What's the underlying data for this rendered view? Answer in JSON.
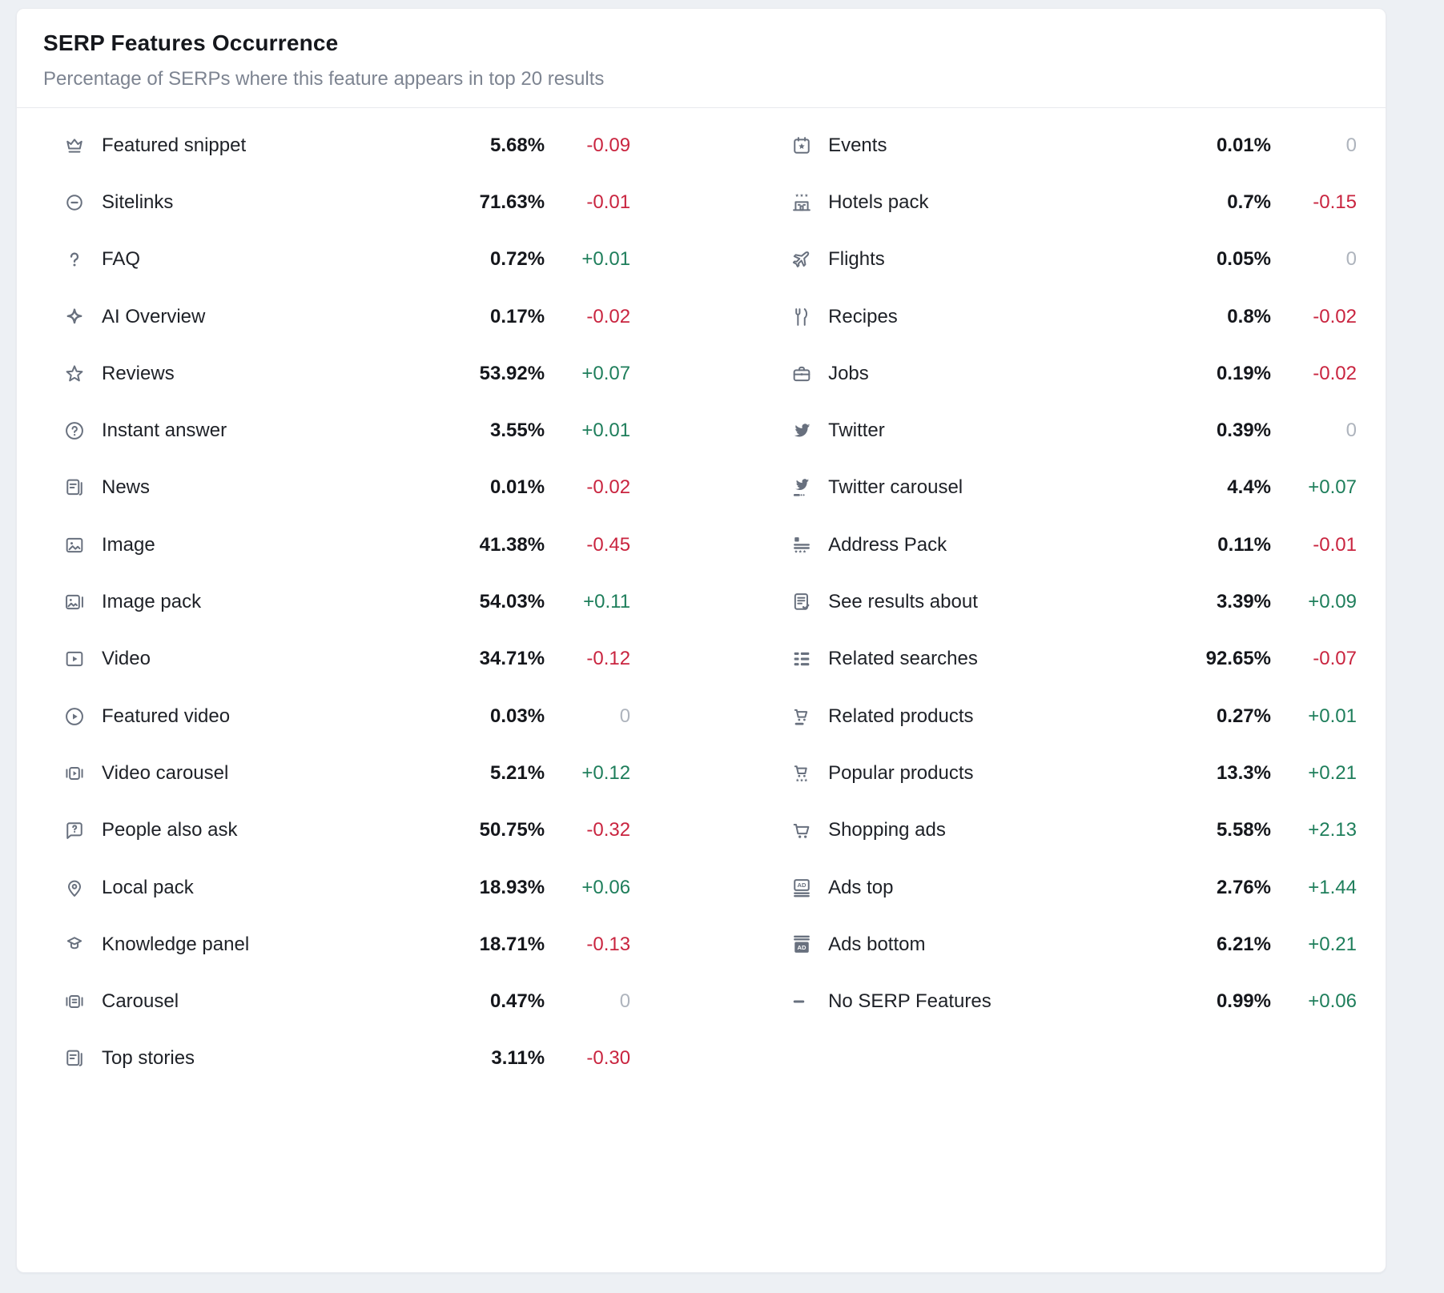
{
  "header": {
    "title": "SERP Features Occurrence",
    "subtitle": "Percentage of SERPs where this feature appears in top 20 results"
  },
  "colors": {
    "positive": "#1e7e5b",
    "negative": "#c9243f",
    "neutral": "#aeb4bd",
    "icon": "#68707e"
  },
  "columns": {
    "left": [
      {
        "icon": "featured-snippet-crown-icon",
        "label": "Featured snippet",
        "value": "5.68%",
        "change": "-0.09"
      },
      {
        "icon": "sitelinks-icon",
        "label": "Sitelinks",
        "value": "71.63%",
        "change": "-0.01"
      },
      {
        "icon": "faq-question-icon",
        "label": "FAQ",
        "value": "0.72%",
        "change": "+0.01"
      },
      {
        "icon": "ai-overview-sparkle-icon",
        "label": "AI Overview",
        "value": "0.17%",
        "change": "-0.02"
      },
      {
        "icon": "reviews-star-icon",
        "label": "Reviews",
        "value": "53.92%",
        "change": "+0.07"
      },
      {
        "icon": "instant-answer-icon",
        "label": "Instant answer",
        "value": "3.55%",
        "change": "+0.01"
      },
      {
        "icon": "news-icon",
        "label": "News",
        "value": "0.01%",
        "change": "-0.02"
      },
      {
        "icon": "image-icon",
        "label": "Image",
        "value": "41.38%",
        "change": "-0.45"
      },
      {
        "icon": "image-pack-icon",
        "label": "Image pack",
        "value": "54.03%",
        "change": "+0.11"
      },
      {
        "icon": "video-icon",
        "label": "Video",
        "value": "34.71%",
        "change": "-0.12"
      },
      {
        "icon": "featured-video-icon",
        "label": "Featured video",
        "value": "0.03%",
        "change": "0"
      },
      {
        "icon": "video-carousel-icon",
        "label": "Video carousel",
        "value": "5.21%",
        "change": "+0.12"
      },
      {
        "icon": "people-also-ask-icon",
        "label": "People also ask",
        "value": "50.75%",
        "change": "-0.32"
      },
      {
        "icon": "local-pack-icon",
        "label": "Local pack",
        "value": "18.93%",
        "change": "+0.06"
      },
      {
        "icon": "knowledge-panel-icon",
        "label": "Knowledge panel",
        "value": "18.71%",
        "change": "-0.13"
      },
      {
        "icon": "carousel-icon",
        "label": "Carousel",
        "value": "0.47%",
        "change": "0"
      },
      {
        "icon": "top-stories-icon",
        "label": "Top stories",
        "value": "3.11%",
        "change": "-0.30"
      }
    ],
    "right": [
      {
        "icon": "events-calendar-icon",
        "label": "Events",
        "value": "0.01%",
        "change": "0"
      },
      {
        "icon": "hotels-pack-icon",
        "label": "Hotels pack",
        "value": "0.7%",
        "change": "-0.15"
      },
      {
        "icon": "flights-icon",
        "label": "Flights",
        "value": "0.05%",
        "change": "0"
      },
      {
        "icon": "recipes-icon",
        "label": "Recipes",
        "value": "0.8%",
        "change": "-0.02"
      },
      {
        "icon": "jobs-icon",
        "label": "Jobs",
        "value": "0.19%",
        "change": "-0.02"
      },
      {
        "icon": "twitter-icon",
        "label": "Twitter",
        "value": "0.39%",
        "change": "0"
      },
      {
        "icon": "twitter-carousel-icon",
        "label": "Twitter carousel",
        "value": "4.4%",
        "change": "+0.07"
      },
      {
        "icon": "address-pack-icon",
        "label": "Address Pack",
        "value": "0.11%",
        "change": "-0.01"
      },
      {
        "icon": "see-results-about-icon",
        "label": "See results about",
        "value": "3.39%",
        "change": "+0.09"
      },
      {
        "icon": "related-searches-icon",
        "label": "Related searches",
        "value": "92.65%",
        "change": "-0.07"
      },
      {
        "icon": "related-products-icon",
        "label": "Related products",
        "value": "0.27%",
        "change": "+0.01"
      },
      {
        "icon": "popular-products-icon",
        "label": "Popular products",
        "value": "13.3%",
        "change": "+0.21"
      },
      {
        "icon": "shopping-ads-icon",
        "label": "Shopping ads",
        "value": "5.58%",
        "change": "+2.13"
      },
      {
        "icon": "ads-top-icon",
        "label": "Ads top",
        "value": "2.76%",
        "change": "+1.44"
      },
      {
        "icon": "ads-bottom-icon",
        "label": "Ads bottom",
        "value": "6.21%",
        "change": "+0.21"
      },
      {
        "icon": "no-serp-features-icon",
        "label": "No SERP Features",
        "value": "0.99%",
        "change": "+0.06"
      }
    ]
  }
}
